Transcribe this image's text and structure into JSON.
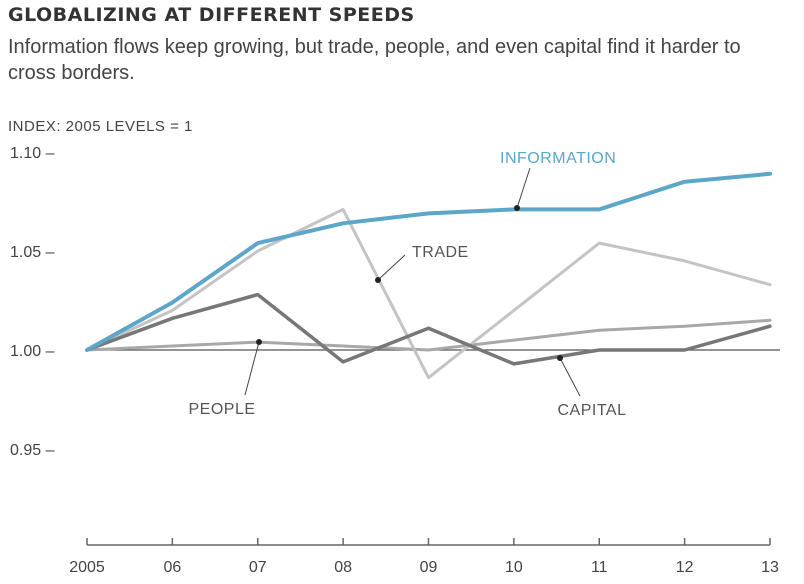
{
  "chart_data": {
    "type": "line",
    "title": "GLOBALIZING AT DIFFERENT SPEEDS",
    "subtitle": "Information flows keep growing, but trade, people, and even capital find it harder to cross borders.",
    "ylabel": "INDEX: 2005 LEVELS = 1",
    "xlabel": "",
    "categories": [
      "2005",
      "06",
      "07",
      "08",
      "09",
      "10",
      "11",
      "12",
      "13"
    ],
    "yticks": [
      "1.10",
      "1.05",
      "1.00",
      "0.95"
    ],
    "ytick_values": [
      1.1,
      1.05,
      1.0,
      0.95
    ],
    "ylim": [
      0.9,
      1.1
    ],
    "baseline": 1.0,
    "grid": false,
    "series": [
      {
        "name": "INFORMATION",
        "values": [
          1.0,
          1.024,
          1.054,
          1.064,
          1.069,
          1.071,
          1.071,
          1.085,
          1.089
        ],
        "color": "#5ba6c9"
      },
      {
        "name": "TRADE",
        "values": [
          1.0,
          1.02,
          1.05,
          1.071,
          0.986,
          1.02,
          1.054,
          1.045,
          1.033
        ],
        "color": "#c4c4c4"
      },
      {
        "name": "PEOPLE",
        "values": [
          1.0,
          1.002,
          1.004,
          1.002,
          1.0,
          1.005,
          1.01,
          1.012,
          1.015
        ],
        "color": "#a8a8a8"
      },
      {
        "name": "CAPITAL",
        "values": [
          1.0,
          1.016,
          1.028,
          0.994,
          1.011,
          0.993,
          1.0,
          1.0,
          1.012
        ],
        "color": "#777777"
      }
    ]
  }
}
